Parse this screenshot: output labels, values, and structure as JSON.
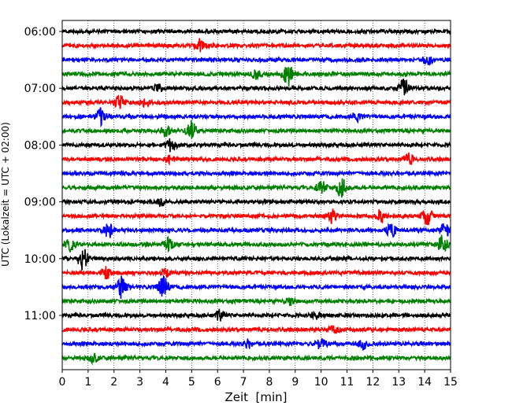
{
  "chart_data": {
    "type": "line",
    "title": "",
    "xlabel": "Zeit  [min]",
    "ylabel": "UTC (Lokalzeit = UTC + 02:00)",
    "xlim": [
      0,
      15
    ],
    "x_ticks": [
      0,
      1,
      2,
      3,
      4,
      5,
      6,
      7,
      8,
      9,
      10,
      11,
      12,
      13,
      14,
      15
    ],
    "y_tick_labels": [
      "06:00",
      "07:00",
      "08:00",
      "09:00",
      "10:00",
      "11:00"
    ],
    "grid": "vertical dotted at each minute",
    "trace_interval_min": 15,
    "color_cycle": [
      "#000000",
      "#ff0000",
      "#0000ff",
      "#008000"
    ],
    "traces": [
      {
        "start": "06:00",
        "events": []
      },
      {
        "start": "06:15",
        "events": [
          {
            "t": 5.3,
            "amp": 0.5
          }
        ]
      },
      {
        "start": "06:30",
        "events": [
          {
            "t": 14.1,
            "amp": 0.3
          }
        ]
      },
      {
        "start": "06:45",
        "events": [
          {
            "t": 7.5,
            "amp": 0.4
          },
          {
            "t": 8.7,
            "amp": 1.0
          }
        ]
      },
      {
        "start": "07:00",
        "events": [
          {
            "t": 13.2,
            "amp": 0.9
          },
          {
            "t": 3.7,
            "amp": 0.3
          }
        ]
      },
      {
        "start": "07:15",
        "events": [
          {
            "t": 2.2,
            "amp": 0.5
          },
          {
            "t": 3.2,
            "amp": 0.3
          }
        ]
      },
      {
        "start": "07:30",
        "events": [
          {
            "t": 1.5,
            "amp": 0.6
          },
          {
            "t": 11.4,
            "amp": 0.3
          }
        ]
      },
      {
        "start": "07:45",
        "events": [
          {
            "t": 5.0,
            "amp": 0.8
          },
          {
            "t": 4.0,
            "amp": 0.4
          }
        ]
      },
      {
        "start": "08:00",
        "events": [
          {
            "t": 4.2,
            "amp": 0.5
          }
        ]
      },
      {
        "start": "08:15",
        "events": [
          {
            "t": 13.4,
            "amp": 0.4
          },
          {
            "t": 4.2,
            "amp": 0.3
          }
        ]
      },
      {
        "start": "08:30",
        "events": []
      },
      {
        "start": "08:45",
        "events": [
          {
            "t": 10.0,
            "amp": 0.6
          },
          {
            "t": 10.8,
            "amp": 0.8
          }
        ]
      },
      {
        "start": "09:00",
        "events": [
          {
            "t": 3.8,
            "amp": 0.3
          }
        ]
      },
      {
        "start": "09:15",
        "events": [
          {
            "t": 10.4,
            "amp": 0.5
          },
          {
            "t": 12.3,
            "amp": 0.5
          },
          {
            "t": 14.1,
            "amp": 0.7
          }
        ]
      },
      {
        "start": "09:30",
        "events": [
          {
            "t": 1.8,
            "amp": 0.6
          },
          {
            "t": 12.7,
            "amp": 0.5
          },
          {
            "t": 14.8,
            "amp": 0.5
          }
        ]
      },
      {
        "start": "09:45",
        "events": [
          {
            "t": 4.1,
            "amp": 0.5
          },
          {
            "t": 14.7,
            "amp": 0.7
          },
          {
            "t": 0.3,
            "amp": 0.5
          }
        ]
      },
      {
        "start": "10:00",
        "events": [
          {
            "t": 0.8,
            "amp": 0.9
          }
        ]
      },
      {
        "start": "10:15",
        "events": [
          {
            "t": 1.7,
            "amp": 0.4
          },
          {
            "t": 4.0,
            "amp": 0.3
          }
        ]
      },
      {
        "start": "10:30",
        "events": [
          {
            "t": 2.3,
            "amp": 0.9
          },
          {
            "t": 3.9,
            "amp": 0.8
          }
        ]
      },
      {
        "start": "10:45",
        "events": [
          {
            "t": 8.8,
            "amp": 0.3
          }
        ]
      },
      {
        "start": "11:00",
        "events": [
          {
            "t": 6.1,
            "amp": 0.4
          },
          {
            "t": 9.8,
            "amp": 0.3
          }
        ]
      },
      {
        "start": "11:15",
        "events": [
          {
            "t": 10.5,
            "amp": 0.3
          }
        ]
      },
      {
        "start": "11:30",
        "events": [
          {
            "t": 10.0,
            "amp": 0.5
          },
          {
            "t": 11.6,
            "amp": 0.4
          },
          {
            "t": 7.2,
            "amp": 0.3
          }
        ]
      },
      {
        "start": "11:45",
        "events": [
          {
            "t": 1.2,
            "amp": 0.3
          }
        ]
      }
    ]
  }
}
